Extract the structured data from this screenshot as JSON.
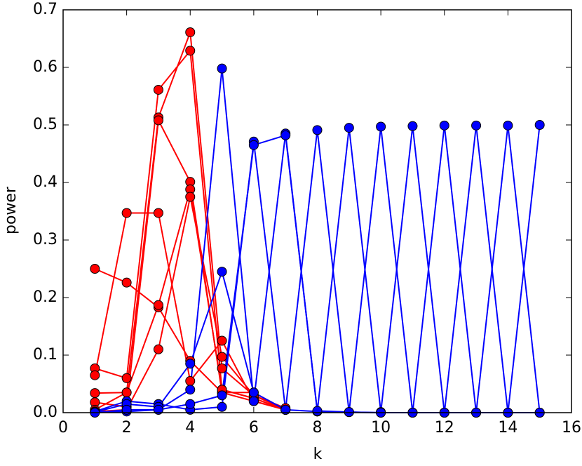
{
  "chart_data": {
    "type": "line",
    "x_label": "k",
    "y_label": "power",
    "xlim": [
      0,
      16
    ],
    "ylim": [
      0,
      0.7
    ],
    "xticks": [
      0,
      2,
      4,
      6,
      8,
      10,
      12,
      14,
      16
    ],
    "yticks": [
      {
        "value": 0,
        "label": "0.0"
      },
      0.1,
      0.2,
      0.3,
      0.4,
      0.5,
      0.6,
      0.7
    ],
    "grid": false,
    "series": [
      {
        "color": "#ff0000",
        "x": [
          1,
          2,
          3,
          4,
          5,
          6,
          7
        ],
        "values": [
          0.25,
          0.226,
          0.183,
          0.09,
          0.035,
          0.02,
          0.005
        ]
      },
      {
        "color": "#ff0000",
        "x": [
          1,
          2,
          3,
          4,
          5,
          6,
          7
        ],
        "values": [
          0.077,
          0.06,
          0.561,
          0.629,
          0.04,
          0.025,
          0.005
        ]
      },
      {
        "color": "#ff0000",
        "x": [
          1,
          2,
          3,
          4,
          5,
          6,
          7
        ],
        "values": [
          0.065,
          0.347,
          0.347,
          0.055,
          0.125,
          0.02,
          0.005
        ]
      },
      {
        "color": "#ff0000",
        "x": [
          1,
          2,
          3,
          4,
          5,
          6,
          7
        ],
        "values": [
          0.034,
          0.035,
          0.513,
          0.661,
          0.077,
          0.03,
          0.008
        ]
      },
      {
        "color": "#ff0000",
        "x": [
          1,
          2,
          3,
          4,
          5,
          6,
          7
        ],
        "values": [
          0.018,
          0.01,
          0.508,
          0.401,
          0.035,
          0.035,
          0.005
        ]
      },
      {
        "color": "#ff0000",
        "x": [
          1,
          2,
          3,
          4,
          5,
          6,
          7
        ],
        "values": [
          0.005,
          0.035,
          0.187,
          0.388,
          0.04,
          0.025,
          0.005
        ]
      },
      {
        "color": "#ff0000",
        "x": [
          1,
          2,
          3,
          4,
          5,
          6,
          7
        ],
        "values": [
          0.002,
          0.005,
          0.11,
          0.375,
          0.097,
          0.03,
          0.005
        ]
      },
      {
        "color": "#0000ff",
        "x": [
          1,
          2,
          3,
          4,
          5,
          6,
          7,
          8,
          9,
          10,
          11,
          12,
          13,
          14,
          15
        ],
        "values": [
          0.001,
          0.002,
          0.005,
          0.04,
          0.598,
          0.02,
          0.485,
          0.002,
          0.495,
          0.001,
          0.498,
          0.0,
          0.499,
          0.0,
          0.5
        ]
      },
      {
        "color": "#0000ff",
        "x": [
          1,
          2,
          3,
          4,
          5,
          6,
          7,
          8,
          9,
          10,
          11,
          12,
          13,
          14,
          15
        ],
        "values": [
          0.002,
          0.02,
          0.015,
          0.005,
          0.01,
          0.471,
          0.005,
          0.491,
          0.001,
          0.497,
          0.0,
          0.499,
          0.0,
          0.499,
          0.0
        ]
      },
      {
        "color": "#0000ff",
        "x": [
          1,
          2,
          3,
          4,
          5,
          6,
          7,
          8,
          9,
          10,
          11,
          12,
          13,
          14,
          15
        ],
        "values": [
          0.001,
          0.015,
          0.01,
          0.085,
          0.245,
          0.035,
          0.005,
          0.002,
          0.001,
          0.0,
          0.0,
          0.0,
          0.0,
          0.0,
          0.0
        ]
      },
      {
        "color": "#0000ff",
        "x": [
          1,
          2,
          3,
          4,
          5,
          6,
          7,
          8,
          9,
          10,
          11,
          12,
          13,
          14,
          15
        ],
        "values": [
          0.0,
          0.005,
          0.005,
          0.015,
          0.03,
          0.465,
          0.482,
          0.003,
          0.001,
          0.0,
          0.0,
          0.0,
          0.0,
          0.0,
          0.0
        ]
      }
    ]
  }
}
